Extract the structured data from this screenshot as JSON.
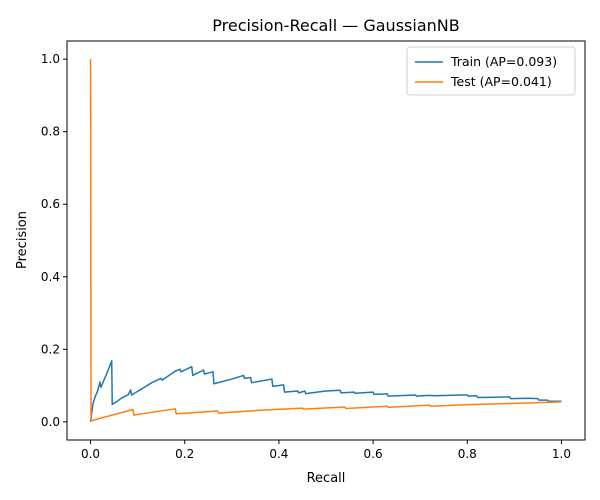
{
  "chart_data": {
    "type": "line",
    "title": "Precision-Recall — GaussianNB",
    "xlabel": "Recall",
    "ylabel": "Precision",
    "xlim": [
      -0.05,
      1.05
    ],
    "ylim": [
      -0.05,
      1.05
    ],
    "xticks": [
      0.0,
      0.2,
      0.4,
      0.6,
      0.8,
      1.0
    ],
    "xtick_labels": [
      "0.0",
      "0.2",
      "0.4",
      "0.6",
      "0.8",
      "1.0"
    ],
    "yticks": [
      0.0,
      0.2,
      0.4,
      0.6,
      0.8,
      1.0
    ],
    "ytick_labels": [
      "0.0",
      "0.2",
      "0.4",
      "0.6",
      "0.8",
      "1.0"
    ],
    "grid": false,
    "legend_position": "top-right",
    "series": [
      {
        "name": "Train (AP=0.093)",
        "color": "#1f77b4",
        "points": [
          [
            0.0,
            0.0
          ],
          [
            0.005,
            0.05
          ],
          [
            0.01,
            0.07
          ],
          [
            0.015,
            0.085
          ],
          [
            0.02,
            0.11
          ],
          [
            0.022,
            0.095
          ],
          [
            0.03,
            0.12
          ],
          [
            0.035,
            0.135
          ],
          [
            0.045,
            0.168
          ],
          [
            0.046,
            0.048
          ],
          [
            0.055,
            0.055
          ],
          [
            0.065,
            0.065
          ],
          [
            0.08,
            0.075
          ],
          [
            0.085,
            0.088
          ],
          [
            0.087,
            0.074
          ],
          [
            0.11,
            0.092
          ],
          [
            0.13,
            0.108
          ],
          [
            0.15,
            0.12
          ],
          [
            0.152,
            0.115
          ],
          [
            0.18,
            0.14
          ],
          [
            0.19,
            0.145
          ],
          [
            0.192,
            0.138
          ],
          [
            0.215,
            0.152
          ],
          [
            0.217,
            0.128
          ],
          [
            0.24,
            0.143
          ],
          [
            0.242,
            0.132
          ],
          [
            0.26,
            0.138
          ],
          [
            0.262,
            0.105
          ],
          [
            0.3,
            0.118
          ],
          [
            0.325,
            0.128
          ],
          [
            0.327,
            0.12
          ],
          [
            0.34,
            0.122
          ],
          [
            0.342,
            0.108
          ],
          [
            0.385,
            0.118
          ],
          [
            0.387,
            0.098
          ],
          [
            0.41,
            0.102
          ],
          [
            0.412,
            0.082
          ],
          [
            0.44,
            0.085
          ],
          [
            0.442,
            0.08
          ],
          [
            0.455,
            0.085
          ],
          [
            0.457,
            0.078
          ],
          [
            0.5,
            0.085
          ],
          [
            0.53,
            0.087
          ],
          [
            0.532,
            0.08
          ],
          [
            0.56,
            0.082
          ],
          [
            0.562,
            0.079
          ],
          [
            0.6,
            0.082
          ],
          [
            0.602,
            0.076
          ],
          [
            0.63,
            0.077
          ],
          [
            0.632,
            0.071
          ],
          [
            0.67,
            0.073
          ],
          [
            0.69,
            0.074
          ],
          [
            0.692,
            0.071
          ],
          [
            0.72,
            0.073
          ],
          [
            0.73,
            0.072
          ],
          [
            0.76,
            0.073
          ],
          [
            0.79,
            0.074
          ],
          [
            0.8,
            0.074
          ],
          [
            0.802,
            0.071
          ],
          [
            0.82,
            0.072
          ],
          [
            0.822,
            0.067
          ],
          [
            0.86,
            0.068
          ],
          [
            0.89,
            0.069
          ],
          [
            0.892,
            0.064
          ],
          [
            0.93,
            0.065
          ],
          [
            0.95,
            0.064
          ],
          [
            0.952,
            0.06
          ],
          [
            0.97,
            0.06
          ],
          [
            0.972,
            0.057
          ],
          [
            1.0,
            0.057
          ]
        ]
      },
      {
        "name": "Test (AP=0.041)",
        "color": "#ff7f0e",
        "points": [
          [
            0.0,
            1.0
          ],
          [
            0.001,
            0.003
          ],
          [
            0.09,
            0.034
          ],
          [
            0.092,
            0.019
          ],
          [
            0.18,
            0.036
          ],
          [
            0.182,
            0.022
          ],
          [
            0.27,
            0.03
          ],
          [
            0.272,
            0.024
          ],
          [
            0.36,
            0.032
          ],
          [
            0.45,
            0.038
          ],
          [
            0.452,
            0.035
          ],
          [
            0.54,
            0.041
          ],
          [
            0.542,
            0.037
          ],
          [
            0.63,
            0.043
          ],
          [
            0.632,
            0.04
          ],
          [
            0.72,
            0.046
          ],
          [
            0.722,
            0.043
          ],
          [
            0.81,
            0.048
          ],
          [
            0.9,
            0.051
          ],
          [
            1.0,
            0.055
          ]
        ]
      }
    ]
  }
}
